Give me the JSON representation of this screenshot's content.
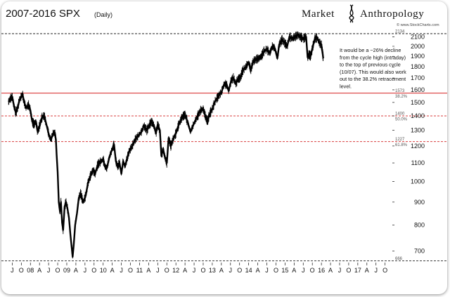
{
  "header": {
    "title": "2007-2016 SPX",
    "subtitle": "(Daily)",
    "brand_left": "Market",
    "brand_right": "Anthropology",
    "credit": "© www.StockCharts.com"
  },
  "colors": {
    "price_line": "#000000",
    "dashed_black": "#000000",
    "level_line": "#d42020",
    "text": "#111111"
  },
  "chart_data": {
    "type": "line",
    "scale": "log",
    "ylim": [
      660,
      2180
    ],
    "y_ticks": [
      700,
      800,
      900,
      1000,
      1100,
      1200,
      1300,
      1400,
      1500,
      1600,
      1700,
      1800,
      1900,
      2000,
      2100
    ],
    "x_ticks": [
      {
        "label": "J",
        "t": 2007.5
      },
      {
        "label": "O",
        "t": 2007.75
      },
      {
        "label": "08",
        "t": 2008.0
      },
      {
        "label": "A",
        "t": 2008.25
      },
      {
        "label": "J",
        "t": 2008.5
      },
      {
        "label": "O",
        "t": 2008.75
      },
      {
        "label": "09",
        "t": 2009.0
      },
      {
        "label": "A",
        "t": 2009.25
      },
      {
        "label": "J",
        "t": 2009.5
      },
      {
        "label": "O",
        "t": 2009.75
      },
      {
        "label": "10",
        "t": 2010.0
      },
      {
        "label": "A",
        "t": 2010.25
      },
      {
        "label": "J",
        "t": 2010.5
      },
      {
        "label": "O",
        "t": 2010.75
      },
      {
        "label": "11",
        "t": 2011.0
      },
      {
        "label": "A",
        "t": 2011.25
      },
      {
        "label": "J",
        "t": 2011.5
      },
      {
        "label": "O",
        "t": 2011.75
      },
      {
        "label": "12",
        "t": 2012.0
      },
      {
        "label": "A",
        "t": 2012.25
      },
      {
        "label": "J",
        "t": 2012.5
      },
      {
        "label": "O",
        "t": 2012.75
      },
      {
        "label": "13",
        "t": 2013.0
      },
      {
        "label": "A",
        "t": 2013.25
      },
      {
        "label": "J",
        "t": 2013.5
      },
      {
        "label": "O",
        "t": 2013.75
      },
      {
        "label": "14",
        "t": 2014.0
      },
      {
        "label": "A",
        "t": 2014.25
      },
      {
        "label": "J",
        "t": 2014.5
      },
      {
        "label": "O",
        "t": 2014.75
      },
      {
        "label": "15",
        "t": 2015.0
      },
      {
        "label": "A",
        "t": 2015.25
      },
      {
        "label": "J",
        "t": 2015.5
      },
      {
        "label": "O",
        "t": 2015.75
      },
      {
        "label": "16",
        "t": 2016.0
      },
      {
        "label": "A",
        "t": 2016.25
      },
      {
        "label": "J",
        "t": 2016.5
      },
      {
        "label": "O",
        "t": 2016.75
      },
      {
        "label": "17",
        "t": 2017.0
      },
      {
        "label": "A",
        "t": 2017.25
      },
      {
        "label": "J",
        "t": 2017.5
      },
      {
        "label": "O",
        "t": 2017.75
      }
    ],
    "series": [
      {
        "points": [
          [
            2007.4,
            1505
          ],
          [
            2007.45,
            1530
          ],
          [
            2007.5,
            1545
          ],
          [
            2007.55,
            1470
          ],
          [
            2007.6,
            1420
          ],
          [
            2007.65,
            1460
          ],
          [
            2007.7,
            1520
          ],
          [
            2007.78,
            1565
          ],
          [
            2007.83,
            1500
          ],
          [
            2007.88,
            1460
          ],
          [
            2007.95,
            1480
          ],
          [
            2008.0,
            1440
          ],
          [
            2008.05,
            1360
          ],
          [
            2008.1,
            1340
          ],
          [
            2008.15,
            1360
          ],
          [
            2008.2,
            1290
          ],
          [
            2008.25,
            1330
          ],
          [
            2008.32,
            1390
          ],
          [
            2008.38,
            1400
          ],
          [
            2008.45,
            1330
          ],
          [
            2008.52,
            1260
          ],
          [
            2008.57,
            1240
          ],
          [
            2008.62,
            1280
          ],
          [
            2008.67,
            1285
          ],
          [
            2008.7,
            1240
          ],
          [
            2008.72,
            1150
          ],
          [
            2008.75,
            1050
          ],
          [
            2008.78,
            900
          ],
          [
            2008.81,
            860
          ],
          [
            2008.84,
            900
          ],
          [
            2008.87,
            810
          ],
          [
            2008.9,
            780
          ],
          [
            2008.94,
            880
          ],
          [
            2008.98,
            900
          ],
          [
            2009.02,
            870
          ],
          [
            2009.06,
            830
          ],
          [
            2009.1,
            760
          ],
          [
            2009.16,
            680
          ],
          [
            2009.19,
            720
          ],
          [
            2009.23,
            800
          ],
          [
            2009.28,
            850
          ],
          [
            2009.33,
            920
          ],
          [
            2009.38,
            940
          ],
          [
            2009.45,
            900
          ],
          [
            2009.52,
            930
          ],
          [
            2009.58,
            990
          ],
          [
            2009.65,
            1030
          ],
          [
            2009.72,
            1060
          ],
          [
            2009.78,
            1040
          ],
          [
            2009.85,
            1090
          ],
          [
            2009.92,
            1105
          ],
          [
            2010.0,
            1120
          ],
          [
            2010.05,
            1080
          ],
          [
            2010.1,
            1070
          ],
          [
            2010.18,
            1140
          ],
          [
            2010.25,
            1180
          ],
          [
            2010.3,
            1210
          ],
          [
            2010.35,
            1110
          ],
          [
            2010.4,
            1080
          ],
          [
            2010.45,
            1100
          ],
          [
            2010.5,
            1040
          ],
          [
            2010.55,
            1110
          ],
          [
            2010.6,
            1080
          ],
          [
            2010.65,
            1120
          ],
          [
            2010.72,
            1170
          ],
          [
            2010.8,
            1200
          ],
          [
            2010.88,
            1240
          ],
          [
            2010.95,
            1260
          ],
          [
            2011.05,
            1290
          ],
          [
            2011.12,
            1330
          ],
          [
            2011.2,
            1300
          ],
          [
            2011.28,
            1340
          ],
          [
            2011.33,
            1360
          ],
          [
            2011.4,
            1330
          ],
          [
            2011.45,
            1280
          ],
          [
            2011.5,
            1340
          ],
          [
            2011.56,
            1300
          ],
          [
            2011.6,
            1140
          ],
          [
            2011.65,
            1180
          ],
          [
            2011.7,
            1130
          ],
          [
            2011.75,
            1100
          ],
          [
            2011.8,
            1250
          ],
          [
            2011.86,
            1200
          ],
          [
            2011.92,
            1240
          ],
          [
            2012.0,
            1280
          ],
          [
            2012.08,
            1340
          ],
          [
            2012.17,
            1390
          ],
          [
            2012.25,
            1410
          ],
          [
            2012.33,
            1350
          ],
          [
            2012.4,
            1290
          ],
          [
            2012.45,
            1320
          ],
          [
            2012.52,
            1360
          ],
          [
            2012.6,
            1400
          ],
          [
            2012.68,
            1440
          ],
          [
            2012.75,
            1450
          ],
          [
            2012.82,
            1390
          ],
          [
            2012.87,
            1360
          ],
          [
            2012.92,
            1410
          ],
          [
            2013.0,
            1450
          ],
          [
            2013.08,
            1510
          ],
          [
            2013.17,
            1550
          ],
          [
            2013.25,
            1580
          ],
          [
            2013.33,
            1650
          ],
          [
            2013.4,
            1640
          ],
          [
            2013.45,
            1590
          ],
          [
            2013.52,
            1680
          ],
          [
            2013.58,
            1700
          ],
          [
            2013.65,
            1650
          ],
          [
            2013.7,
            1690
          ],
          [
            2013.77,
            1700
          ],
          [
            2013.83,
            1760
          ],
          [
            2013.92,
            1800
          ],
          [
            2014.0,
            1840
          ],
          [
            2014.06,
            1770
          ],
          [
            2014.12,
            1850
          ],
          [
            2014.2,
            1870
          ],
          [
            2014.28,
            1880
          ],
          [
            2014.35,
            1900
          ],
          [
            2014.42,
            1950
          ],
          [
            2014.5,
            1970
          ],
          [
            2014.58,
            1930
          ],
          [
            2014.65,
            2000
          ],
          [
            2014.72,
            1980
          ],
          [
            2014.79,
            1880
          ],
          [
            2014.84,
            2020
          ],
          [
            2014.92,
            2070
          ],
          [
            2015.0,
            2030
          ],
          [
            2015.06,
            2000
          ],
          [
            2015.12,
            2100
          ],
          [
            2015.2,
            2080
          ],
          [
            2015.28,
            2100
          ],
          [
            2015.35,
            2120
          ],
          [
            2015.42,
            2100
          ],
          [
            2015.5,
            2080
          ],
          [
            2015.58,
            2100
          ],
          [
            2015.62,
            1890
          ],
          [
            2015.66,
            1920
          ],
          [
            2015.7,
            1900
          ],
          [
            2015.76,
            1990
          ],
          [
            2015.82,
            2080
          ],
          [
            2015.88,
            2090
          ],
          [
            2015.94,
            2040
          ],
          [
            2016.0,
            2010
          ],
          [
            2016.03,
            1940
          ],
          [
            2016.05,
            1880
          ]
        ]
      }
    ],
    "levels": [
      {
        "value": 2134,
        "label": "2134",
        "style": "dashed-black"
      },
      {
        "value": 1573,
        "label": "1573",
        "sublabel": "38.2%",
        "style": "solid-red"
      },
      {
        "value": 1400,
        "label": "1400",
        "sublabel": "50.0%",
        "style": "dashed-red"
      },
      {
        "value": 1227,
        "label": "1227",
        "sublabel": "61.8%",
        "style": "dashed-red"
      },
      {
        "value": 666,
        "label": "666",
        "style": "dashed-black"
      }
    ],
    "annotation": [
      "It would be a ~26% decline",
      "from the cycle high (intraday)",
      "to the top of previous cycle",
      "(10/07). This would also work",
      "out to the 38.2% retracement",
      "level."
    ]
  }
}
